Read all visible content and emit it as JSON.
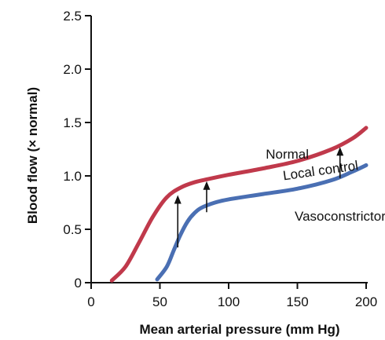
{
  "chart_data": {
    "type": "line",
    "title": "",
    "xlabel": "Mean arterial pressure (mm Hg)",
    "ylabel": "Blood flow (× normal)",
    "xlim": [
      0,
      200
    ],
    "ylim": [
      0,
      2.5
    ],
    "x_ticks": [
      0,
      50,
      100,
      150,
      200
    ],
    "y_ticks": [
      0,
      0.5,
      1.0,
      1.5,
      2.0,
      2.5
    ],
    "x_tick_labels": [
      "0",
      "50",
      "100",
      "150",
      "200"
    ],
    "y_tick_labels": [
      "0",
      "0.5",
      "1.0",
      "1.5",
      "2.0",
      "2.5"
    ],
    "grid": false,
    "legend": "none",
    "series": [
      {
        "name": "Normal",
        "color": "#c0394b",
        "x": [
          15,
          25,
          35,
          45,
          55,
          65,
          75,
          85,
          100,
          125,
          150,
          175,
          190,
          200
        ],
        "y": [
          0.02,
          0.15,
          0.38,
          0.62,
          0.8,
          0.89,
          0.94,
          0.97,
          1.01,
          1.07,
          1.14,
          1.25,
          1.35,
          1.45
        ]
      },
      {
        "name": "Vasoconstrictor",
        "color": "#4a6fb3",
        "x": [
          48,
          55,
          60,
          65,
          70,
          75,
          80,
          90,
          100,
          125,
          150,
          175,
          190,
          200
        ],
        "y": [
          0.03,
          0.15,
          0.3,
          0.45,
          0.57,
          0.65,
          0.7,
          0.75,
          0.78,
          0.83,
          0.88,
          0.96,
          1.04,
          1.1
        ]
      }
    ],
    "arrows": [
      {
        "x": 63,
        "from": 0.33,
        "to": 0.82
      },
      {
        "x": 84,
        "from": 0.66,
        "to": 0.95
      },
      {
        "x": 181,
        "from": 0.98,
        "to": 1.27
      }
    ],
    "annotations": [
      {
        "name": "normal-label",
        "text": "Normal",
        "x": 127,
        "y": 1.16,
        "rotate": 0
      },
      {
        "name": "local-control-label",
        "text": "Local control",
        "x": 140,
        "y": 0.96,
        "rotate": -8
      },
      {
        "name": "vasoconstrictor-label",
        "text": "Vasoconstrictor",
        "x": 148,
        "y": 0.58,
        "rotate": 0
      }
    ],
    "colors": {
      "axis": "#111111",
      "arrow": "#111111"
    }
  }
}
